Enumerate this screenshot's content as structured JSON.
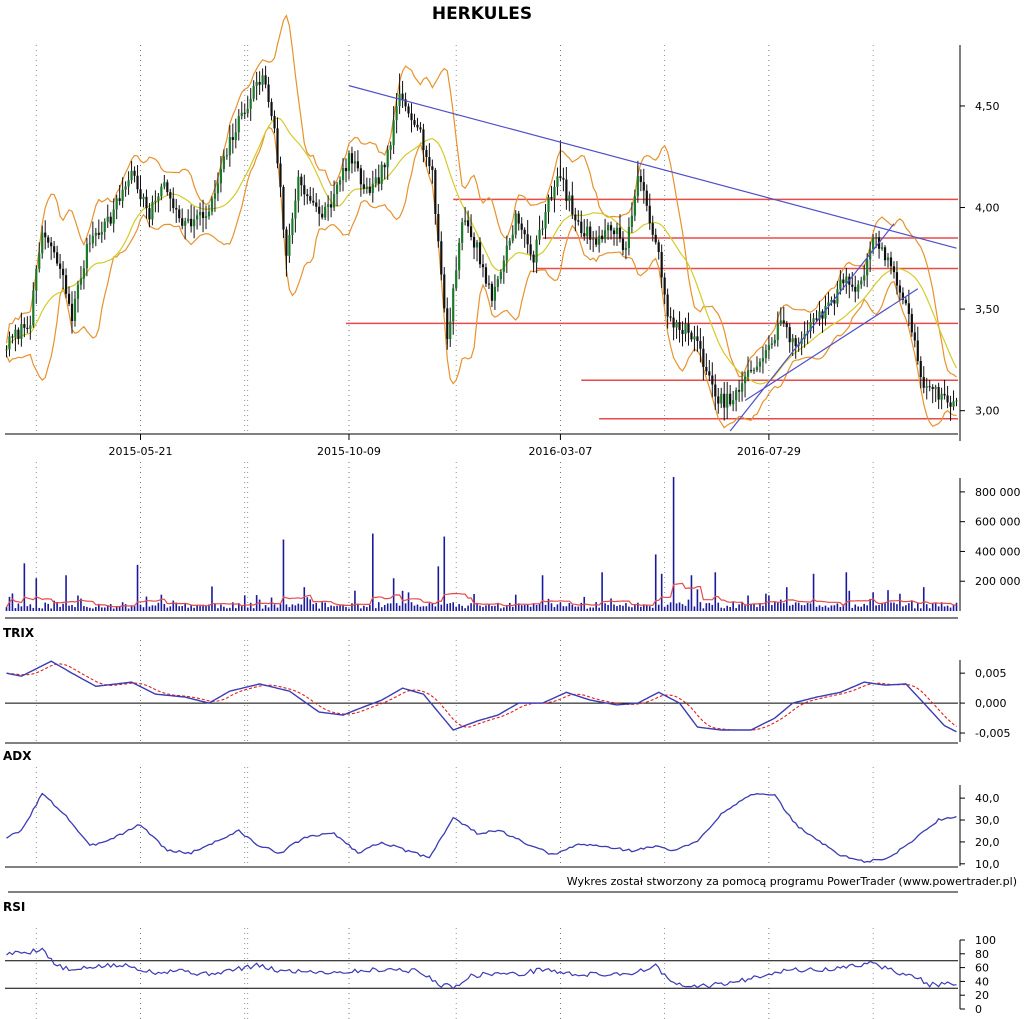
{
  "chart_data": [
    {
      "type": "candlestick",
      "title": "HERKULES",
      "ylim": [
        2.9,
        4.8
      ],
      "y_ticks": [
        "4,50",
        "4,00",
        "3,50",
        "3,00"
      ],
      "y_tick_values": [
        4.5,
        4.0,
        3.5,
        3.0
      ],
      "x_ticks": [
        "2015-05-21",
        "2015-10-09",
        "2016-03-07",
        "2016-07-29"
      ],
      "x_tick_index": [
        45,
        115,
        186,
        256
      ],
      "n_bars": 320,
      "close_anchors": [
        [
          0,
          3.32
        ],
        [
          8,
          3.45
        ],
        [
          12,
          3.88
        ],
        [
          18,
          3.7
        ],
        [
          22,
          3.47
        ],
        [
          28,
          3.85
        ],
        [
          35,
          3.95
        ],
        [
          42,
          4.18
        ],
        [
          48,
          3.95
        ],
        [
          52,
          4.12
        ],
        [
          60,
          3.92
        ],
        [
          68,
          3.97
        ],
        [
          75,
          4.32
        ],
        [
          82,
          4.55
        ],
        [
          86,
          4.65
        ],
        [
          90,
          4.4
        ],
        [
          94,
          3.75
        ],
        [
          98,
          4.15
        ],
        [
          105,
          3.95
        ],
        [
          110,
          4.05
        ],
        [
          115,
          4.25
        ],
        [
          122,
          4.05
        ],
        [
          128,
          4.25
        ],
        [
          132,
          4.55
        ],
        [
          138,
          4.42
        ],
        [
          143,
          4.15
        ],
        [
          148,
          3.35
        ],
        [
          153,
          3.95
        ],
        [
          158,
          3.8
        ],
        [
          163,
          3.55
        ],
        [
          167,
          3.75
        ],
        [
          171,
          3.95
        ],
        [
          177,
          3.75
        ],
        [
          182,
          4.05
        ],
        [
          186,
          4.15
        ],
        [
          192,
          3.9
        ],
        [
          198,
          3.85
        ],
        [
          204,
          3.9
        ],
        [
          208,
          3.8
        ],
        [
          212,
          4.15
        ],
        [
          218,
          3.85
        ],
        [
          222,
          3.45
        ],
        [
          228,
          3.4
        ],
        [
          233,
          3.3
        ],
        [
          238,
          3.05
        ],
        [
          244,
          3.05
        ],
        [
          250,
          3.2
        ],
        [
          256,
          3.3
        ],
        [
          260,
          3.45
        ],
        [
          265,
          3.3
        ],
        [
          270,
          3.45
        ],
        [
          276,
          3.5
        ],
        [
          281,
          3.65
        ],
        [
          286,
          3.6
        ],
        [
          291,
          3.85
        ],
        [
          296,
          3.75
        ],
        [
          300,
          3.6
        ],
        [
          305,
          3.35
        ],
        [
          308,
          3.1
        ],
        [
          313,
          3.08
        ],
        [
          319,
          3.02
        ]
      ],
      "overlays": [
        "bollinger-bands",
        "moving-average"
      ],
      "colors": {
        "candles": "#000000",
        "bands": "#e8922e",
        "ma": "#d4cb2a",
        "levels": "#e84a4a",
        "trendlines": "#5050c8"
      },
      "horizontal_levels": [
        {
          "y": 4.04,
          "from": 150
        },
        {
          "y": 3.85,
          "from": 180
        },
        {
          "y": 3.7,
          "from": 178
        },
        {
          "y": 3.43,
          "from": 114
        },
        {
          "y": 3.15,
          "from": 193
        },
        {
          "y": 2.96,
          "from": 199
        }
      ],
      "trendlines": [
        {
          "x1": 115,
          "y1": 4.6,
          "x2": 319,
          "y2": 3.8
        },
        {
          "x1": 243,
          "y1": 2.9,
          "x2": 298,
          "y2": 3.92
        },
        {
          "x1": 248,
          "y1": 3.05,
          "x2": 306,
          "y2": 3.6
        }
      ]
    },
    {
      "type": "bar",
      "name": "volume",
      "ylim": [
        0,
        900000
      ],
      "y_ticks": [
        "800 000",
        "600 000",
        "400 000",
        "200 000"
      ],
      "y_tick_values": [
        800000,
        600000,
        400000,
        200000
      ],
      "colors": {
        "bars": "#1a1a9a",
        "ma": "#e84a4a"
      },
      "spikes": [
        [
          6,
          320000
        ],
        [
          10,
          220000
        ],
        [
          20,
          240000
        ],
        [
          44,
          310000
        ],
        [
          69,
          165000
        ],
        [
          93,
          480000
        ],
        [
          123,
          520000
        ],
        [
          147,
          500000
        ],
        [
          145,
          300000
        ],
        [
          200,
          260000
        ],
        [
          218,
          380000
        ],
        [
          220,
          250000
        ],
        [
          224,
          900000
        ],
        [
          238,
          260000
        ],
        [
          262,
          160000
        ],
        [
          271,
          250000
        ],
        [
          282,
          260000
        ],
        [
          296,
          140000
        ],
        [
          308,
          160000
        ],
        [
          130,
          220000
        ],
        [
          180,
          240000
        ],
        [
          100,
          160000
        ],
        [
          230,
          240000
        ]
      ]
    },
    {
      "type": "line",
      "name": "TRIX",
      "ylim": [
        -0.0065,
        0.0072
      ],
      "y_ticks": [
        "0,005",
        "0,000",
        "-0,005"
      ],
      "y_tick_values": [
        0.005,
        0.0,
        -0.005
      ],
      "reference_lines": [
        0.0
      ],
      "colors": {
        "trix": "#3b3bb5",
        "signal": "#e02020"
      },
      "trix_anchors": [
        [
          0,
          0.005
        ],
        [
          5,
          0.0045
        ],
        [
          15,
          0.007
        ],
        [
          22,
          0.005
        ],
        [
          30,
          0.0028
        ],
        [
          42,
          0.0035
        ],
        [
          50,
          0.0015
        ],
        [
          60,
          0.001
        ],
        [
          68,
          0.0
        ],
        [
          75,
          0.002
        ],
        [
          85,
          0.0032
        ],
        [
          95,
          0.002
        ],
        [
          105,
          -0.0015
        ],
        [
          113,
          -0.002
        ],
        [
          118,
          -0.001
        ],
        [
          126,
          0.0005
        ],
        [
          133,
          0.0025
        ],
        [
          140,
          0.0015
        ],
        [
          150,
          -0.0045
        ],
        [
          158,
          -0.003
        ],
        [
          165,
          -0.002
        ],
        [
          172,
          0.0
        ],
        [
          180,
          0.0
        ],
        [
          188,
          0.0018
        ],
        [
          196,
          0.0005
        ],
        [
          205,
          -0.0003
        ],
        [
          212,
          0.0
        ],
        [
          219,
          0.0018
        ],
        [
          226,
          0.0
        ],
        [
          232,
          -0.004
        ],
        [
          240,
          -0.0045
        ],
        [
          250,
          -0.0045
        ],
        [
          258,
          -0.0025
        ],
        [
          264,
          0.0
        ],
        [
          272,
          0.001
        ],
        [
          280,
          0.0018
        ],
        [
          288,
          0.0035
        ],
        [
          295,
          0.003
        ],
        [
          302,
          0.0032
        ],
        [
          308,
          0.0
        ],
        [
          315,
          -0.0038
        ],
        [
          319,
          -0.0048
        ]
      ],
      "signal_lag": 3
    },
    {
      "type": "line",
      "name": "ADX",
      "ylim": [
        9.0,
        46.0
      ],
      "y_ticks": [
        "40,0",
        "30,0",
        "20,0",
        "10,0"
      ],
      "y_tick_values": [
        40.0,
        30.0,
        20.0,
        10.0
      ],
      "colors": {
        "adx": "#3b3bb5"
      },
      "adx_anchors": [
        [
          0,
          22
        ],
        [
          5,
          25
        ],
        [
          12,
          42
        ],
        [
          20,
          32
        ],
        [
          28,
          18
        ],
        [
          36,
          22
        ],
        [
          45,
          28
        ],
        [
          54,
          16
        ],
        [
          62,
          15
        ],
        [
          70,
          20
        ],
        [
          78,
          25
        ],
        [
          85,
          18
        ],
        [
          92,
          15
        ],
        [
          100,
          22
        ],
        [
          110,
          24
        ],
        [
          118,
          15
        ],
        [
          126,
          20
        ],
        [
          134,
          16
        ],
        [
          142,
          13
        ],
        [
          150,
          31
        ],
        [
          158,
          24
        ],
        [
          166,
          25
        ],
        [
          176,
          18
        ],
        [
          184,
          14
        ],
        [
          192,
          19
        ],
        [
          200,
          18
        ],
        [
          210,
          16
        ],
        [
          218,
          18
        ],
        [
          224,
          16
        ],
        [
          232,
          20
        ],
        [
          240,
          33
        ],
        [
          250,
          42
        ],
        [
          258,
          41
        ],
        [
          265,
          28
        ],
        [
          272,
          21
        ],
        [
          280,
          14
        ],
        [
          288,
          11
        ],
        [
          295,
          12
        ],
        [
          302,
          18
        ],
        [
          308,
          25
        ],
        [
          313,
          30
        ],
        [
          319,
          32
        ]
      ]
    },
    {
      "type": "line",
      "name": "RSI",
      "ylim": [
        0,
        100
      ],
      "y_ticks": [
        "100",
        "80",
        "60",
        "40",
        "20",
        "0"
      ],
      "y_tick_values": [
        100,
        80,
        60,
        40,
        20,
        0
      ],
      "reference_lines": [
        70,
        30
      ],
      "colors": {
        "rsi": "#3b3bb5",
        "reference": "#000000"
      },
      "rsi_anchors": [
        [
          0,
          80
        ],
        [
          8,
          83
        ],
        [
          12,
          88
        ],
        [
          16,
          65
        ],
        [
          22,
          55
        ],
        [
          30,
          62
        ],
        [
          40,
          63
        ],
        [
          50,
          53
        ],
        [
          58,
          57
        ],
        [
          66,
          50
        ],
        [
          74,
          55
        ],
        [
          84,
          63
        ],
        [
          92,
          55
        ],
        [
          100,
          55
        ],
        [
          110,
          53
        ],
        [
          118,
          55
        ],
        [
          128,
          58
        ],
        [
          138,
          55
        ],
        [
          146,
          35
        ],
        [
          150,
          32
        ],
        [
          156,
          48
        ],
        [
          164,
          52
        ],
        [
          172,
          50
        ],
        [
          180,
          58
        ],
        [
          190,
          50
        ],
        [
          200,
          50
        ],
        [
          210,
          52
        ],
        [
          218,
          62
        ],
        [
          224,
          36
        ],
        [
          230,
          32
        ],
        [
          238,
          35
        ],
        [
          246,
          40
        ],
        [
          256,
          52
        ],
        [
          264,
          57
        ],
        [
          272,
          56
        ],
        [
          280,
          59
        ],
        [
          290,
          67
        ],
        [
          298,
          55
        ],
        [
          306,
          45
        ],
        [
          310,
          35
        ],
        [
          316,
          36
        ],
        [
          319,
          35
        ]
      ]
    }
  ],
  "footer": "Wykres został stworzony za pomocą programu PowerTrader (www.powertrader.pl)"
}
